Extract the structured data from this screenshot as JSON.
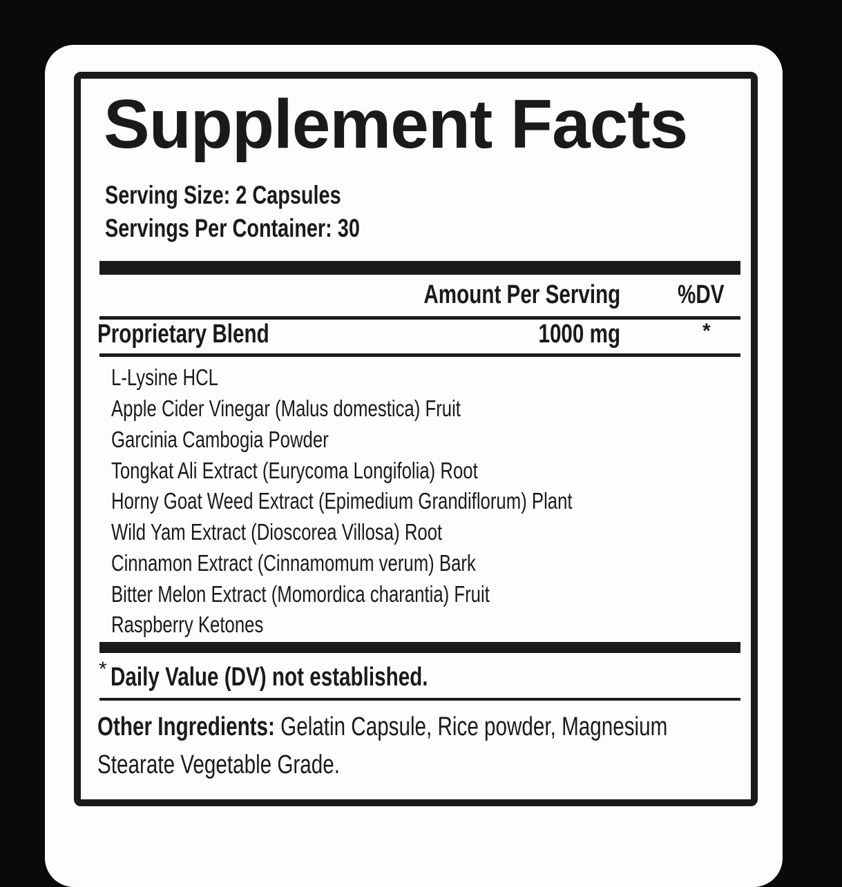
{
  "title": "Supplement Facts",
  "serving_size": "Serving Size: 2 Capsules",
  "servings_per_container": "Servings Per Container: 30",
  "header": {
    "amount": "Amount Per Serving",
    "dv": "%DV"
  },
  "blend": {
    "name": "Proprietary Blend",
    "amount": "1000 mg",
    "dv": "*"
  },
  "ingredients": [
    "L-Lysine HCL",
    "Apple Cider Vinegar (Malus domestica) Fruit",
    "Garcinia Cambogia Powder",
    "Tongkat Ali Extract (Eurycoma Longifolia) Root",
    "Horny Goat Weed Extract (Epimedium Grandiflorum) Plant",
    "Wild Yam Extract (Dioscorea Villosa) Root",
    "Cinnamon Extract (Cinnamomum verum) Bark",
    "Bitter Melon Extract (Momordica charantia) Fruit",
    "Raspberry Ketones"
  ],
  "footnote": {
    "star": "*",
    "text": "Daily Value (DV) not established."
  },
  "other": {
    "label": "Other Ingredients:",
    "line1": "Gelatin Capsule, Rice powder, Magnesium",
    "line2": "Stearate Vegetable Grade."
  }
}
